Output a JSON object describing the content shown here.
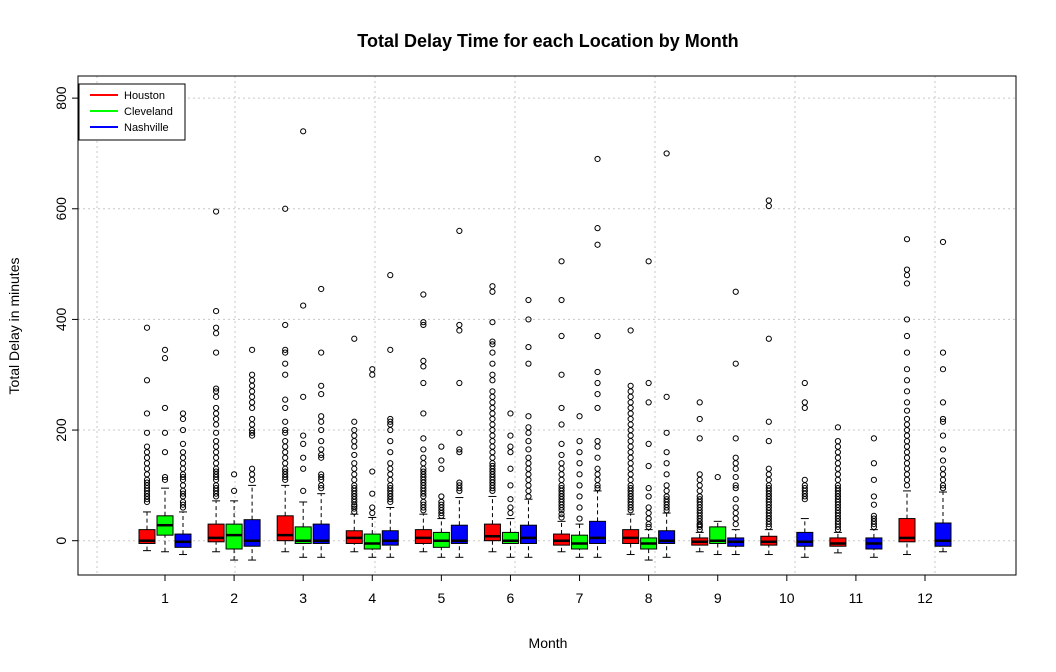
{
  "chart_data": {
    "type": "box",
    "title": "Total Delay Time for each Location by Month",
    "xlabel": "Month",
    "ylabel": "Total Delay in minutes",
    "categories": [
      "1",
      "2",
      "3",
      "4",
      "5",
      "6",
      "7",
      "8",
      "9",
      "10",
      "11",
      "12"
    ],
    "ylim": [
      -62,
      840
    ],
    "yticks": [
      0,
      200,
      400,
      600,
      800
    ],
    "grid": true,
    "legend_position": "top-left",
    "series": [
      {
        "name": "Houston",
        "color": "#ff0000",
        "boxes": [
          {
            "wlow": -18,
            "q1": -5,
            "median": 0,
            "q3": 20,
            "whigh": 52,
            "outliers": [
              70,
              75,
              80,
              85,
              90,
              95,
              100,
              105,
              110,
              120,
              130,
              140,
              150,
              160,
              170,
              195,
              230,
              290,
              385
            ]
          },
          {
            "wlow": -20,
            "q1": -2,
            "median": 5,
            "q3": 30,
            "whigh": 72,
            "outliers": [
              80,
              85,
              90,
              95,
              100,
              110,
              115,
              120,
              125,
              130,
              140,
              150,
              160,
              170,
              180,
              195,
              210,
              220,
              230,
              240,
              260,
              270,
              275,
              340,
              375,
              385,
              415,
              595
            ]
          },
          {
            "wlow": -20,
            "q1": 0,
            "median": 10,
            "q3": 45,
            "whigh": 100,
            "outliers": [
              110,
              115,
              120,
              125,
              130,
              140,
              150,
              160,
              170,
              180,
              195,
              200,
              215,
              240,
              255,
              300,
              320,
              340,
              345,
              390,
              600
            ]
          },
          {
            "wlow": -20,
            "q1": -5,
            "median": 5,
            "q3": 18,
            "whigh": 48,
            "outliers": [
              52,
              58,
              62,
              65,
              70,
              75,
              80,
              85,
              90,
              95,
              100,
              110,
              120,
              130,
              140,
              155,
              170,
              180,
              190,
              200,
              215,
              365
            ]
          },
          {
            "wlow": -20,
            "q1": -5,
            "median": 5,
            "q3": 20,
            "whigh": 48,
            "outliers": [
              55,
              60,
              65,
              70,
              80,
              85,
              90,
              95,
              100,
              105,
              110,
              115,
              120,
              125,
              130,
              140,
              150,
              165,
              185,
              230,
              285,
              315,
              325,
              390,
              395,
              445
            ]
          },
          {
            "wlow": -20,
            "q1": 0,
            "median": 8,
            "q3": 30,
            "whigh": 80,
            "outliers": [
              90,
              95,
              100,
              105,
              110,
              115,
              120,
              125,
              130,
              135,
              140,
              150,
              160,
              170,
              180,
              190,
              200,
              210,
              220,
              230,
              240,
              250,
              260,
              270,
              290,
              300,
              320,
              340,
              355,
              360,
              395,
              450,
              460
            ]
          },
          {
            "wlow": -20,
            "q1": -8,
            "median": 0,
            "q3": 12,
            "whigh": 35,
            "outliers": [
              42,
              48,
              55,
              60,
              65,
              70,
              75,
              80,
              85,
              90,
              95,
              100,
              110,
              120,
              130,
              140,
              155,
              175,
              210,
              240,
              300,
              370,
              435,
              505
            ]
          },
          {
            "wlow": -25,
            "q1": -5,
            "median": 5,
            "q3": 20,
            "whigh": 48,
            "outliers": [
              55,
              60,
              65,
              70,
              75,
              80,
              85,
              90,
              95,
              100,
              110,
              120,
              130,
              140,
              150,
              160,
              170,
              180,
              190,
              200,
              210,
              220,
              230,
              240,
              250,
              260,
              270,
              280,
              380
            ]
          },
          {
            "wlow": -20,
            "q1": -8,
            "median": -2,
            "q3": 5,
            "whigh": 15,
            "outliers": [
              20,
              25,
              28,
              30,
              35,
              40,
              45,
              50,
              55,
              60,
              65,
              70,
              75,
              80,
              90,
              100,
              110,
              120,
              185,
              220,
              250
            ]
          },
          {
            "wlow": -25,
            "q1": -8,
            "median": -2,
            "q3": 8,
            "whigh": 20,
            "outliers": [
              25,
              30,
              35,
              40,
              45,
              50,
              55,
              60,
              65,
              70,
              75,
              80,
              85,
              90,
              95,
              100,
              110,
              120,
              130,
              180,
              215,
              365,
              605,
              615
            ]
          },
          {
            "wlow": -22,
            "q1": -10,
            "median": -5,
            "q3": 5,
            "whigh": 15,
            "outliers": [
              20,
              25,
              30,
              35,
              40,
              45,
              50,
              55,
              60,
              65,
              70,
              75,
              80,
              85,
              90,
              95,
              100,
              110,
              120,
              130,
              140,
              150,
              160,
              170,
              180,
              205
            ]
          },
          {
            "wlow": -25,
            "q1": -2,
            "median": 5,
            "q3": 40,
            "whigh": 90,
            "outliers": [
              100,
              110,
              120,
              130,
              140,
              150,
              160,
              170,
              180,
              190,
              200,
              210,
              220,
              235,
              250,
              270,
              290,
              310,
              340,
              370,
              400,
              465,
              480,
              490,
              545
            ]
          }
        ]
      },
      {
        "name": "Cleveland",
        "color": "#00ff00",
        "boxes": [
          {
            "wlow": -20,
            "q1": 10,
            "median": 28,
            "q3": 45,
            "whigh": 95,
            "outliers": [
              110,
              115,
              160,
              195,
              240,
              330,
              345
            ]
          },
          {
            "wlow": -35,
            "q1": -15,
            "median": 10,
            "q3": 30,
            "whigh": 72,
            "outliers": [
              90,
              120
            ]
          },
          {
            "wlow": -30,
            "q1": -5,
            "median": 0,
            "q3": 25,
            "whigh": 70,
            "outliers": [
              90,
              130,
              150,
              175,
              190,
              260,
              425,
              740
            ]
          },
          {
            "wlow": -30,
            "q1": -15,
            "median": -5,
            "q3": 12,
            "whigh": 42,
            "outliers": [
              50,
              60,
              85,
              125,
              300,
              310
            ]
          },
          {
            "wlow": -30,
            "q1": -12,
            "median": 0,
            "q3": 15,
            "whigh": 40,
            "outliers": [
              45,
              50,
              55,
              60,
              65,
              70,
              80,
              130,
              145,
              170
            ]
          },
          {
            "wlow": -30,
            "q1": -5,
            "median": 0,
            "q3": 15,
            "whigh": 40,
            "outliers": [
              50,
              60,
              75,
              100,
              130,
              160,
              170,
              190,
              230
            ]
          },
          {
            "wlow": -30,
            "q1": -15,
            "median": -5,
            "q3": 10,
            "whigh": 30,
            "outliers": [
              40,
              60,
              80,
              100,
              120,
              140,
              160,
              180,
              225
            ]
          },
          {
            "wlow": -35,
            "q1": -15,
            "median": -5,
            "q3": 5,
            "whigh": 20,
            "outliers": [
              25,
              30,
              40,
              50,
              60,
              80,
              95,
              135,
              175,
              250,
              285,
              505
            ]
          },
          {
            "wlow": -25,
            "q1": -5,
            "median": 0,
            "q3": 25,
            "whigh": 35,
            "outliers": [
              115
            ]
          },
          {
            "wlow": 0,
            "q1": 0,
            "median": 0,
            "q3": 0,
            "whigh": 0,
            "outliers": []
          },
          {
            "wlow": 0,
            "q1": 0,
            "median": 0,
            "q3": 0,
            "whigh": 0,
            "outliers": []
          },
          {
            "wlow": 0,
            "q1": 0,
            "median": 0,
            "q3": 0,
            "whigh": 0,
            "outliers": []
          }
        ]
      },
      {
        "name": "Nashville",
        "color": "#0000ff",
        "boxes": [
          {
            "wlow": -25,
            "q1": -12,
            "median": -2,
            "q3": 12,
            "whigh": 52,
            "outliers": [
              60,
              65,
              70,
              80,
              85,
              90,
              100,
              110,
              115,
              120,
              130,
              140,
              150,
              160,
              175,
              200,
              220,
              230
            ]
          },
          {
            "wlow": -35,
            "q1": -10,
            "median": 0,
            "q3": 38,
            "whigh": 100,
            "outliers": [
              110,
              120,
              130,
              190,
              195,
              200,
              210,
              220,
              240,
              250,
              260,
              270,
              280,
              290,
              300,
              345
            ]
          },
          {
            "wlow": -30,
            "q1": -5,
            "median": 0,
            "q3": 30,
            "whigh": 85,
            "outliers": [
              95,
              100,
              110,
              115,
              120,
              150,
              155,
              165,
              180,
              200,
              215,
              225,
              265,
              280,
              340,
              455
            ]
          },
          {
            "wlow": -30,
            "q1": -8,
            "median": 0,
            "q3": 18,
            "whigh": 60,
            "outliers": [
              70,
              75,
              80,
              85,
              90,
              95,
              100,
              110,
              120,
              130,
              140,
              160,
              180,
              200,
              210,
              215,
              220,
              345,
              480
            ]
          },
          {
            "wlow": -30,
            "q1": -5,
            "median": 0,
            "q3": 28,
            "whigh": 78,
            "outliers": [
              90,
              95,
              100,
              105,
              160,
              165,
              195,
              285,
              380,
              390,
              560
            ]
          },
          {
            "wlow": -30,
            "q1": -5,
            "median": 5,
            "q3": 28,
            "whigh": 75,
            "outliers": [
              80,
              90,
              100,
              110,
              120,
              130,
              140,
              150,
              165,
              180,
              195,
              205,
              225,
              320,
              350,
              400,
              435
            ]
          },
          {
            "wlow": -30,
            "q1": -5,
            "median": 5,
            "q3": 35,
            "whigh": 90,
            "outliers": [
              95,
              100,
              110,
              120,
              130,
              150,
              170,
              180,
              240,
              265,
              285,
              305,
              370,
              535,
              565,
              690
            ]
          },
          {
            "wlow": -30,
            "q1": -5,
            "median": 0,
            "q3": 18,
            "whigh": 50,
            "outliers": [
              55,
              60,
              65,
              70,
              75,
              80,
              90,
              100,
              120,
              140,
              160,
              195,
              260,
              700
            ]
          },
          {
            "wlow": -25,
            "q1": -10,
            "median": -2,
            "q3": 5,
            "whigh": 20,
            "outliers": [
              30,
              40,
              50,
              60,
              75,
              95,
              100,
              115,
              130,
              140,
              150,
              185,
              320,
              450
            ]
          },
          {
            "wlow": -30,
            "q1": -10,
            "median": -2,
            "q3": 15,
            "whigh": 40,
            "outliers": [
              75,
              80,
              85,
              90,
              95,
              100,
              110,
              240,
              250,
              285
            ]
          },
          {
            "wlow": -30,
            "q1": -15,
            "median": -5,
            "q3": 5,
            "whigh": 20,
            "outliers": [
              25,
              30,
              35,
              40,
              45,
              65,
              80,
              110,
              140,
              185
            ]
          },
          {
            "wlow": -20,
            "q1": -10,
            "median": 0,
            "q3": 32,
            "whigh": 88,
            "outliers": [
              95,
              100,
              110,
              120,
              130,
              145,
              165,
              190,
              215,
              220,
              250,
              310,
              340,
              540
            ]
          }
        ]
      }
    ]
  }
}
